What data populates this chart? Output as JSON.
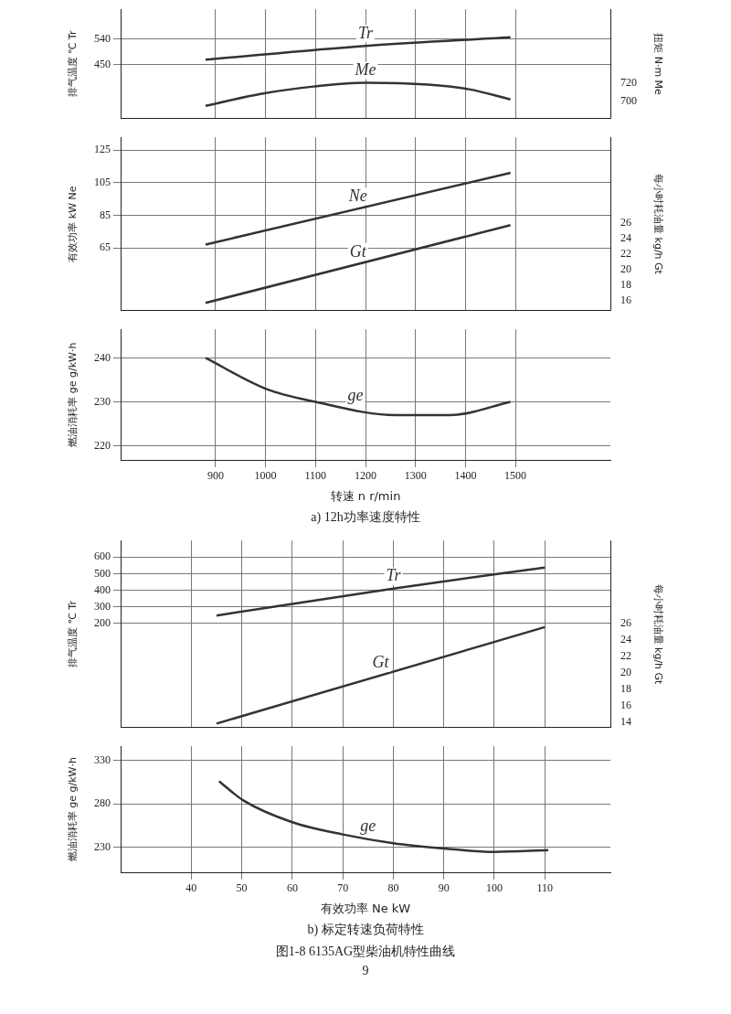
{
  "chart_data": [
    {
      "type": "line",
      "ylabel": "排气温度 ℃ Tr",
      "y2label": "扭矩 N·m Me",
      "xlim": [
        710,
        1690
      ],
      "xticks": [
        900,
        1000,
        1100,
        1200,
        1300,
        1400,
        1500
      ],
      "ylim": [
        256,
        647
      ],
      "yticks": [
        450,
        540
      ],
      "y2lim": [
        681,
        800
      ],
      "y2ticks": [
        700,
        720
      ],
      "grid": true,
      "marker": "none",
      "tick_labels": "y",
      "series": [
        {
          "name": "Tr",
          "color": "#333333",
          "x": [
            880,
            1200,
            1490
          ],
          "values": [
            467,
            516,
            547
          ]
        },
        {
          "name": "Me",
          "color": "#333333",
          "axis": "y2",
          "x": [
            880,
            990,
            1096,
            1200,
            1325,
            1407,
            1490
          ],
          "values": [
            695,
            708,
            716,
            720,
            718,
            713,
            702
          ]
        }
      ]
    },
    {
      "type": "line",
      "ylabel": "有效功率 kW Ne",
      "y2label": "每小时耗油量 kg/h Gt",
      "xlim": [
        710,
        1690
      ],
      "xticks": [
        900,
        1000,
        1100,
        1200,
        1300,
        1400,
        1500
      ],
      "ylim": [
        26.4,
        132.8
      ],
      "yticks": [
        65,
        85,
        105,
        125
      ],
      "y2lim": [
        14.7,
        37
      ],
      "y2ticks": [
        16,
        18,
        20,
        22,
        24,
        26
      ],
      "grid": true,
      "marker": "none",
      "tick_labels": "y",
      "series": [
        {
          "name": "Ne",
          "color": "#333333",
          "x": [
            880,
            1490
          ],
          "values": [
            67,
            111
          ]
        },
        {
          "name": "Gt",
          "color": "#333333",
          "axis": "y2",
          "x": [
            880,
            1490
          ],
          "values": [
            15.7,
            25.7
          ]
        }
      ]
    },
    {
      "type": "line",
      "subtitle": "a) 12h功率速度特性",
      "xlabel": "转速 n r/min",
      "ylabel": "燃油消耗率 ge g/kW·h",
      "xlim": [
        710,
        1690
      ],
      "xticks": [
        900,
        1000,
        1100,
        1200,
        1300,
        1400,
        1500
      ],
      "ylim": [
        216.8,
        246.5
      ],
      "yticks": [
        220,
        230,
        240
      ],
      "grid": true,
      "marker": "none",
      "series": [
        {
          "name": "ge",
          "color": "#333333",
          "x": [
            880,
            1000,
            1100,
            1260,
            1370,
            1490
          ],
          "values": [
            240,
            233,
            230,
            227,
            227,
            230
          ]
        }
      ]
    },
    {
      "type": "line",
      "ylabel": "排气温度 ℃ Tr",
      "y2label": "每小时耗油量 kg/h Gt",
      "xlim": [
        26,
        123
      ],
      "xticks": [
        40,
        50,
        60,
        70,
        80,
        90,
        100,
        110
      ],
      "ylim": [
        -431,
        700
      ],
      "yticks": [
        200,
        300,
        400,
        500,
        600
      ],
      "y2lim": [
        13.3,
        36.2
      ],
      "y2ticks": [
        14,
        16,
        18,
        20,
        22,
        24,
        26
      ],
      "grid": true,
      "marker": "none",
      "tick_labels": "y",
      "series": [
        {
          "name": "Tr",
          "color": "#333333",
          "x": [
            45,
            80,
            110
          ],
          "values": [
            247,
            410,
            537
          ]
        },
        {
          "name": "Gt",
          "color": "#333333",
          "axis": "y2",
          "x": [
            45,
            110
          ],
          "values": [
            13.8,
            25.6
          ]
        }
      ]
    },
    {
      "type": "line",
      "subtitle": "b) 标定转速负荷特性",
      "xlabel": "有效功率 Ne kW",
      "ylabel": "燃油消耗率 ge g/kW·h",
      "xlim": [
        26,
        123
      ],
      "xticks": [
        40,
        50,
        60,
        70,
        80,
        90,
        100,
        110
      ],
      "ylim": [
        201.7,
        346
      ],
      "yticks": [
        230,
        280,
        330
      ],
      "grid": true,
      "marker": "none",
      "annotations": [
        "图1-8 6135AG型柴油机特性曲线",
        "9"
      ],
      "series": [
        {
          "name": "ge",
          "color": "#333333",
          "x": [
            45.5,
            50.3,
            60,
            70,
            80,
            90,
            100,
            110.7
          ],
          "values": [
            306,
            284,
            259,
            245,
            235,
            229,
            225,
            227
          ]
        }
      ]
    }
  ]
}
